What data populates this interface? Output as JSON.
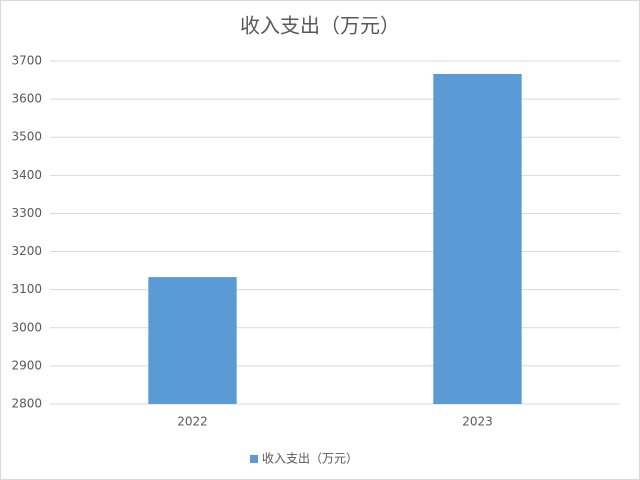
{
  "chart_data": {
    "type": "bar",
    "title": "收入支出（万元）",
    "categories": [
      "2022",
      "2023"
    ],
    "series": [
      {
        "name": "收入支出（万元）",
        "color": "#5b9bd5",
        "values": [
          3133,
          3666
        ]
      }
    ],
    "ylim": [
      2800,
      3700
    ],
    "yticks": [
      2800,
      2900,
      3000,
      3100,
      3200,
      3300,
      3400,
      3500,
      3600,
      3700
    ],
    "grid": true,
    "legend": "bottom"
  }
}
